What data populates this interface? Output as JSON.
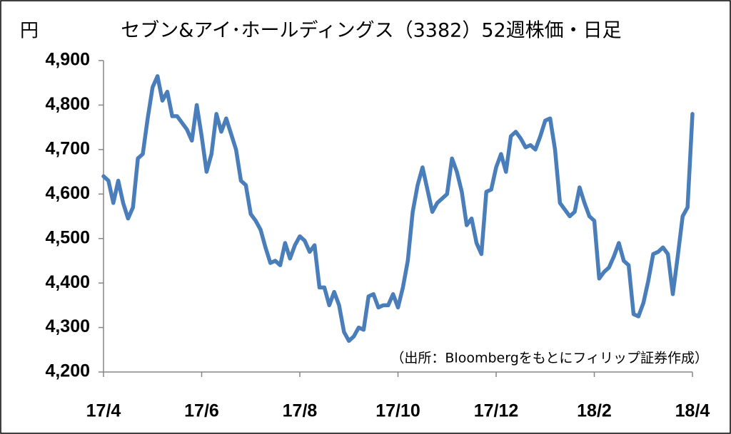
{
  "chart_data": {
    "type": "line",
    "title": "セブン&アイ･ホールディングス（3382）52週株価・日足",
    "y_unit": "円",
    "annotation": "（出所：Bloombergをもとにフィリップ証券作成）",
    "color": "#4a7ebb",
    "values": [
      4640,
      4630,
      4580,
      4630,
      4580,
      4545,
      4570,
      4680,
      4690,
      4770,
      4840,
      4865,
      4810,
      4830,
      4775,
      4775,
      4760,
      4745,
      4720,
      4800,
      4730,
      4650,
      4690,
      4780,
      4740,
      4770,
      4735,
      4700,
      4630,
      4620,
      4555,
      4540,
      4520,
      4480,
      4445,
      4450,
      4440,
      4490,
      4455,
      4485,
      4505,
      4495,
      4470,
      4485,
      4390,
      4390,
      4350,
      4380,
      4350,
      4290,
      4270,
      4280,
      4300,
      4295,
      4370,
      4375,
      4345,
      4350,
      4350,
      4375,
      4345,
      4390,
      4450,
      4560,
      4620,
      4660,
      4610,
      4560,
      4580,
      4590,
      4600,
      4680,
      4650,
      4605,
      4530,
      4545,
      4490,
      4465,
      4605,
      4610,
      4660,
      4690,
      4650,
      4730,
      4740,
      4725,
      4705,
      4710,
      4700,
      4730,
      4765,
      4770,
      4700,
      4580,
      4565,
      4550,
      4560,
      4615,
      4580,
      4550,
      4540,
      4410,
      4425,
      4435,
      4460,
      4490,
      4450,
      4440,
      4330,
      4325,
      4355,
      4405,
      4465,
      4470,
      4480,
      4465,
      4375,
      4460,
      4550,
      4570,
      4780
    ],
    "xlim": [
      0,
      120
    ],
    "xticks": [
      {
        "value": 0,
        "label": "17/4"
      },
      {
        "value": 20,
        "label": "17/6"
      },
      {
        "value": 40,
        "label": "17/8"
      },
      {
        "value": 60,
        "label": "17/10"
      },
      {
        "value": 80,
        "label": "17/12"
      },
      {
        "value": 100,
        "label": "18/2"
      },
      {
        "value": 120,
        "label": "18/4"
      }
    ],
    "ylim": [
      4200,
      4900
    ],
    "yticks": [
      {
        "value": 4200,
        "label": "4,200"
      },
      {
        "value": 4300,
        "label": "4,300"
      },
      {
        "value": 4400,
        "label": "4,400"
      },
      {
        "value": 4500,
        "label": "4,500"
      },
      {
        "value": 4600,
        "label": "4,600"
      },
      {
        "value": 4700,
        "label": "4,700"
      },
      {
        "value": 4800,
        "label": "4,800"
      },
      {
        "value": 4900,
        "label": "4,900"
      }
    ]
  }
}
